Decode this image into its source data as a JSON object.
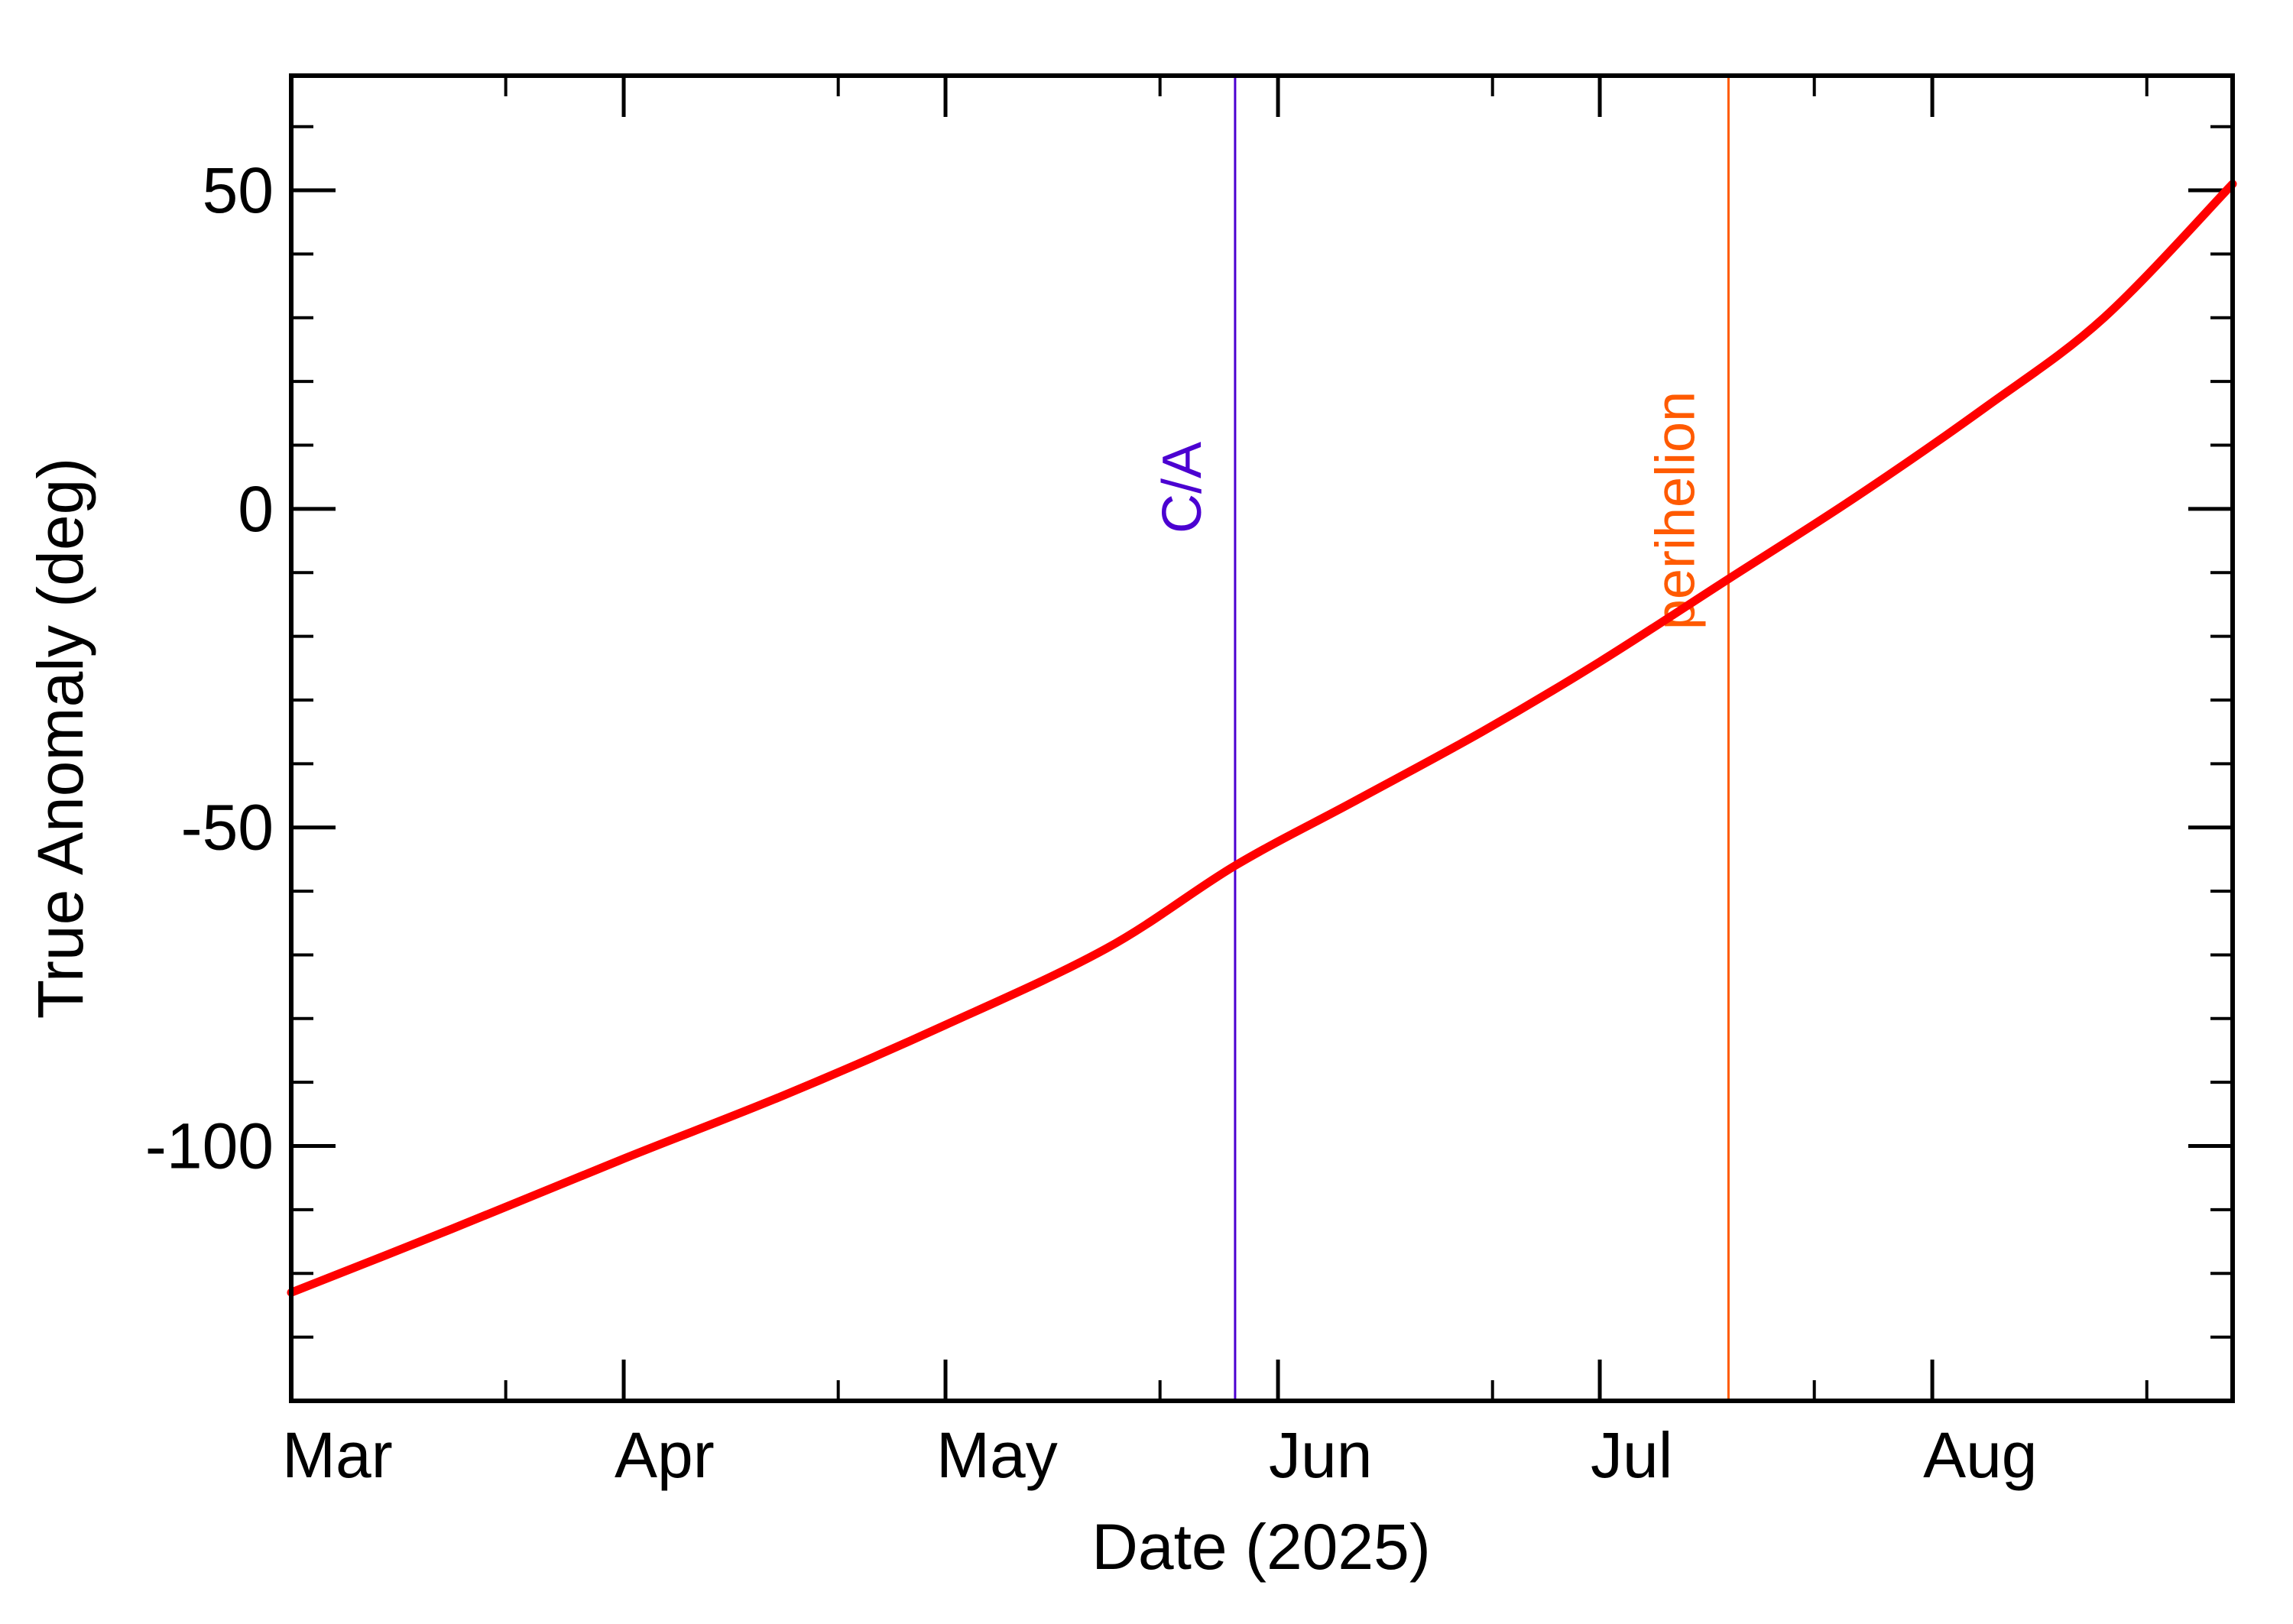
{
  "chart_data": {
    "type": "line",
    "title": "",
    "xlabel": "Date (2025)",
    "ylabel": "True Anomaly (deg)",
    "x_axis_type": "date",
    "xlim": [
      "2025-03-01",
      "2025-08-29"
    ],
    "ylim": [
      -140,
      68
    ],
    "x_tick_labels": [
      {
        "label": "Mar",
        "date": "2025-03-01"
      },
      {
        "label": "Apr",
        "date": "2025-04-01"
      },
      {
        "label": "May",
        "date": "2025-05-01"
      },
      {
        "label": "Jun",
        "date": "2025-06-01"
      },
      {
        "label": "Jul",
        "date": "2025-07-01"
      },
      {
        "label": "Aug",
        "date": "2025-08-01"
      }
    ],
    "y_ticks": [
      -100,
      -50,
      0,
      50
    ],
    "y_minor_step": 10,
    "x_minor_ticks": [
      "2025-03-21",
      "2025-04-21",
      "2025-05-21",
      "2025-06-21",
      "2025-07-21",
      "2025-08-21"
    ],
    "series": [
      {
        "name": "",
        "color": "#ff0000",
        "x": [
          "2025-03-01",
          "2025-03-16",
          "2025-04-01",
          "2025-04-16",
          "2025-05-01",
          "2025-05-16",
          "2025-05-28",
          "2025-06-08",
          "2025-06-20",
          "2025-07-01",
          "2025-07-13",
          "2025-07-25",
          "2025-08-06",
          "2025-08-17",
          "2025-08-29"
        ],
        "y": [
          -123,
          -113,
          -102,
          -92,
          -81,
          -69,
          -56,
          -46,
          -35,
          -24,
          -11,
          2,
          16,
          30,
          51
        ]
      }
    ],
    "annotations": [
      {
        "label": "C/A",
        "date": "2025-05-28",
        "color": "#4b00d1"
      },
      {
        "label": "perihelion",
        "date": "2025-07-13",
        "color": "#ff5a00"
      }
    ],
    "grid": false,
    "legend": "none"
  }
}
